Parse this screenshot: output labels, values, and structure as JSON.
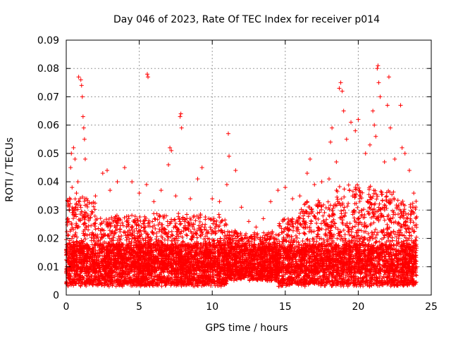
{
  "chart_data": {
    "type": "scatter",
    "title": "Day 046 of 2023, Rate Of TEC Index for receiver p014",
    "xlabel": "GPS time / hours",
    "ylabel": "ROTI / TECUs",
    "xlim": [
      0,
      25
    ],
    "ylim": [
      0,
      0.09
    ],
    "xticks": [
      "0",
      "5",
      "10",
      "15",
      "20",
      "25"
    ],
    "yticks": [
      "0",
      "0.01",
      "0.02",
      "0.03",
      "0.04",
      "0.05",
      "0.06",
      "0.07",
      "0.08",
      "0.09"
    ],
    "grid": true,
    "marker": "plus",
    "color": "#ff0000",
    "point_density": "dense",
    "series": [
      {
        "name": "",
        "points": [
          [
            0.1,
            0.021
          ],
          [
            0.2,
            0.009
          ],
          [
            0.3,
            0.045
          ],
          [
            0.35,
            0.05
          ],
          [
            0.4,
            0.038
          ],
          [
            0.5,
            0.052
          ],
          [
            0.6,
            0.048
          ],
          [
            0.7,
            0.036
          ],
          [
            0.8,
            0.04
          ],
          [
            0.9,
            0.033
          ],
          [
            0.85,
            0.077
          ],
          [
            1.0,
            0.076
          ],
          [
            1.05,
            0.074
          ],
          [
            1.1,
            0.07
          ],
          [
            1.15,
            0.063
          ],
          [
            1.2,
            0.059
          ],
          [
            1.25,
            0.055
          ],
          [
            1.3,
            0.048
          ],
          [
            1.4,
            0.034
          ],
          [
            1.5,
            0.028
          ],
          [
            2.0,
            0.035
          ],
          [
            2.5,
            0.043
          ],
          [
            2.8,
            0.044
          ],
          [
            3.0,
            0.037
          ],
          [
            3.5,
            0.04
          ],
          [
            4.0,
            0.045
          ],
          [
            4.5,
            0.04
          ],
          [
            5.0,
            0.036
          ],
          [
            5.5,
            0.039
          ],
          [
            5.55,
            0.078
          ],
          [
            5.6,
            0.077
          ],
          [
            6.0,
            0.033
          ],
          [
            6.5,
            0.037
          ],
          [
            7.0,
            0.046
          ],
          [
            7.1,
            0.052
          ],
          [
            7.2,
            0.051
          ],
          [
            7.5,
            0.035
          ],
          [
            7.8,
            0.063
          ],
          [
            7.85,
            0.064
          ],
          [
            7.9,
            0.059
          ],
          [
            8.5,
            0.034
          ],
          [
            9.0,
            0.041
          ],
          [
            9.3,
            0.045
          ],
          [
            10.0,
            0.034
          ],
          [
            10.5,
            0.033
          ],
          [
            11.0,
            0.039
          ],
          [
            11.1,
            0.057
          ],
          [
            11.15,
            0.049
          ],
          [
            11.6,
            0.044
          ],
          [
            12.0,
            0.031
          ],
          [
            12.5,
            0.026
          ],
          [
            13.0,
            0.024
          ],
          [
            13.5,
            0.027
          ],
          [
            14.0,
            0.033
          ],
          [
            14.5,
            0.037
          ],
          [
            15.0,
            0.038
          ],
          [
            15.5,
            0.034
          ],
          [
            16.0,
            0.035
          ],
          [
            16.5,
            0.043
          ],
          [
            16.7,
            0.048
          ],
          [
            17.0,
            0.039
          ],
          [
            17.5,
            0.04
          ],
          [
            18.0,
            0.041
          ],
          [
            18.1,
            0.054
          ],
          [
            18.2,
            0.059
          ],
          [
            18.5,
            0.047
          ],
          [
            18.7,
            0.073
          ],
          [
            18.8,
            0.075
          ],
          [
            18.9,
            0.072
          ],
          [
            19.0,
            0.065
          ],
          [
            19.2,
            0.055
          ],
          [
            19.5,
            0.061
          ],
          [
            19.8,
            0.058
          ],
          [
            20.0,
            0.062
          ],
          [
            20.5,
            0.05
          ],
          [
            20.8,
            0.053
          ],
          [
            21.0,
            0.065
          ],
          [
            21.1,
            0.06
          ],
          [
            21.2,
            0.056
          ],
          [
            21.3,
            0.08
          ],
          [
            21.35,
            0.081
          ],
          [
            21.4,
            0.075
          ],
          [
            21.5,
            0.07
          ],
          [
            21.8,
            0.047
          ],
          [
            22.0,
            0.067
          ],
          [
            22.1,
            0.077
          ],
          [
            22.2,
            0.059
          ],
          [
            22.5,
            0.048
          ],
          [
            22.9,
            0.067
          ],
          [
            23.0,
            0.052
          ],
          [
            23.2,
            0.05
          ],
          [
            23.5,
            0.044
          ],
          [
            23.8,
            0.036
          ]
        ]
      }
    ]
  }
}
